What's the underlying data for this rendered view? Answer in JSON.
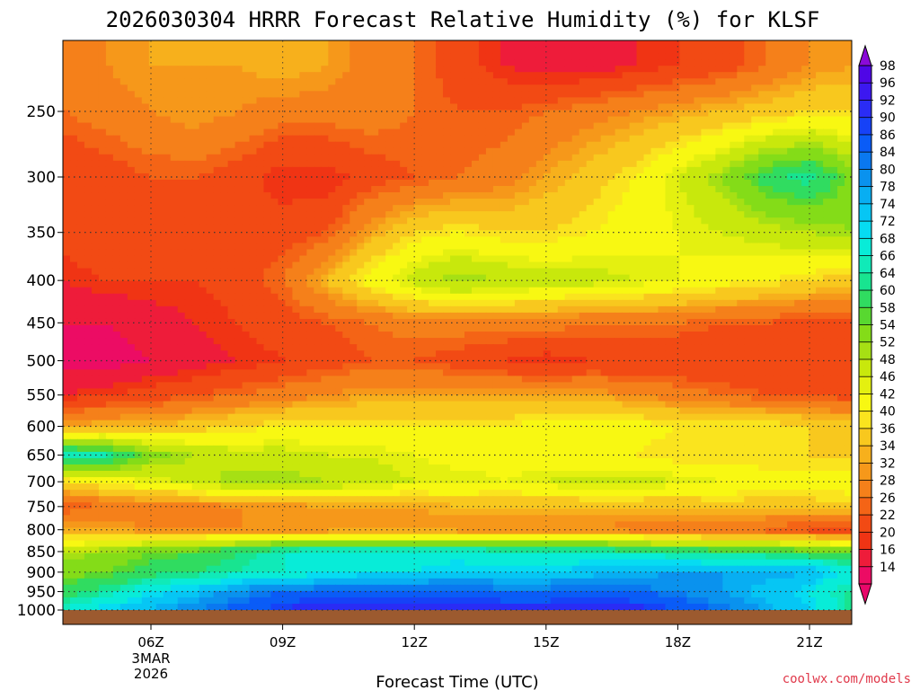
{
  "header": {
    "title": "2026030304 HRRR Forecast Relative Humidity (%) for KLSF"
  },
  "footer": {
    "credit": "coolwx.com/models"
  },
  "colors": {
    "ground": "#9c5a2f",
    "grid": "#333333",
    "credit": "#e0384a"
  },
  "chart_data": {
    "type": "heatmap",
    "title": "2026030304 HRRR Forecast Relative Humidity (%) for KLSF",
    "xlabel": "Forecast Time (UTC)",
    "ylabel": "",
    "ylim": [
      1000,
      200
    ],
    "y_scale": "log-pressure",
    "grid": true,
    "x_ticks": [
      {
        "label": "06Z",
        "sub": [
          "3MAR",
          "2026"
        ]
      },
      {
        "label": "09Z"
      },
      {
        "label": "12Z"
      },
      {
        "label": "15Z"
      },
      {
        "label": "18Z"
      },
      {
        "label": "21Z"
      }
    ],
    "y_ticks": [
      1000,
      950,
      900,
      850,
      800,
      750,
      700,
      650,
      600,
      550,
      500,
      450,
      400,
      350,
      300,
      250
    ],
    "colorbar": {
      "labels": [
        98,
        96,
        92,
        90,
        86,
        84,
        80,
        78,
        74,
        72,
        68,
        66,
        64,
        60,
        58,
        54,
        52,
        48,
        46,
        42,
        40,
        36,
        34,
        32,
        28,
        26,
        22,
        20,
        16,
        14
      ],
      "colors": [
        "#4f06e6",
        "#3c18f0",
        "#2a2cf5",
        "#1642f7",
        "#0a5cf7",
        "#0a78f0",
        "#0a92ee",
        "#08aef2",
        "#06c6f4",
        "#06dcf2",
        "#08ecd8",
        "#10eab8",
        "#18e490",
        "#30dc60",
        "#58d830",
        "#84dc18",
        "#a6e014",
        "#c8e80c",
        "#e4f010",
        "#f8f812",
        "#fae41e",
        "#f8c81e",
        "#f7b01c",
        "#f6981a",
        "#f5801a",
        "#f46416",
        "#f24a14",
        "#f03414",
        "#ee1c3a",
        "#ec0c64"
      ],
      "top_arrow": "#8a0ad8",
      "bottom_arrow": "#e8086a"
    },
    "note": "RH (%) by forecast time (rows = pressure levels 1000..250 hPa, columns = hourly from ~04Z to ~22Z)",
    "levels": [
      1000,
      950,
      900,
      850,
      800,
      750,
      700,
      650,
      600,
      550,
      500,
      450,
      400,
      350,
      300,
      250,
      220
    ],
    "hours": [
      4,
      5,
      6,
      7,
      8,
      9,
      10,
      11,
      12,
      13,
      14,
      15,
      16,
      17,
      18,
      19,
      20,
      21,
      22
    ],
    "rh": [
      [
        68,
        74,
        78,
        84,
        88,
        92,
        96,
        96,
        96,
        96,
        94,
        94,
        94,
        94,
        90,
        86,
        80,
        74,
        64
      ],
      [
        62,
        66,
        72,
        76,
        82,
        86,
        88,
        88,
        88,
        88,
        86,
        86,
        88,
        86,
        84,
        80,
        76,
        72,
        64
      ],
      [
        56,
        58,
        62,
        64,
        66,
        68,
        70,
        72,
        72,
        74,
        74,
        74,
        76,
        78,
        80,
        80,
        80,
        78,
        70
      ],
      [
        52,
        54,
        58,
        60,
        64,
        68,
        70,
        70,
        70,
        70,
        68,
        68,
        68,
        66,
        64,
        62,
        62,
        60,
        58
      ],
      [
        34,
        34,
        32,
        32,
        32,
        32,
        32,
        32,
        32,
        32,
        32,
        32,
        32,
        30,
        28,
        28,
        26,
        24,
        22
      ],
      [
        26,
        28,
        30,
        30,
        32,
        32,
        34,
        34,
        34,
        36,
        36,
        36,
        36,
        36,
        36,
        38,
        38,
        38,
        40
      ],
      [
        40,
        44,
        46,
        50,
        54,
        54,
        52,
        50,
        48,
        48,
        46,
        48,
        50,
        50,
        48,
        46,
        44,
        44,
        44
      ],
      [
        68,
        66,
        56,
        52,
        50,
        50,
        48,
        48,
        46,
        44,
        44,
        44,
        42,
        42,
        40,
        40,
        40,
        40,
        40
      ],
      [
        34,
        36,
        36,
        38,
        40,
        42,
        42,
        42,
        42,
        42,
        42,
        44,
        44,
        44,
        42,
        42,
        42,
        40,
        38
      ],
      [
        20,
        22,
        24,
        26,
        28,
        30,
        32,
        34,
        34,
        34,
        34,
        34,
        34,
        32,
        30,
        28,
        26,
        26,
        24
      ],
      [
        14,
        14,
        16,
        18,
        20,
        22,
        24,
        26,
        26,
        24,
        22,
        20,
        22,
        22,
        22,
        22,
        22,
        22,
        22
      ],
      [
        16,
        16,
        18,
        20,
        22,
        24,
        26,
        28,
        30,
        30,
        30,
        30,
        28,
        28,
        28,
        26,
        26,
        24,
        24
      ],
      [
        20,
        22,
        22,
        22,
        24,
        28,
        36,
        44,
        50,
        54,
        52,
        50,
        50,
        48,
        46,
        44,
        42,
        40,
        38
      ],
      [
        24,
        26,
        26,
        24,
        24,
        24,
        26,
        34,
        40,
        42,
        40,
        40,
        42,
        44,
        46,
        48,
        50,
        52,
        54
      ],
      [
        22,
        24,
        26,
        26,
        24,
        20,
        20,
        24,
        26,
        28,
        30,
        34,
        38,
        42,
        48,
        54,
        62,
        66,
        56
      ],
      [
        28,
        30,
        32,
        34,
        32,
        30,
        30,
        30,
        28,
        26,
        26,
        28,
        30,
        32,
        34,
        36,
        38,
        40,
        40
      ],
      [
        30,
        32,
        34,
        34,
        34,
        36,
        34,
        30,
        28,
        24,
        20,
        18,
        18,
        20,
        22,
        24,
        28,
        32,
        34
      ]
    ]
  }
}
